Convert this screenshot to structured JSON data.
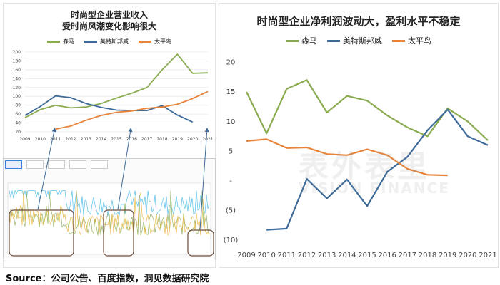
{
  "colors": {
    "senma": "#8aab4f",
    "metersbonwe": "#3d6a99",
    "taipingniao": "#e8833a"
  },
  "chart_data": [
    {
      "type": "line",
      "title": "时尚型企业营业收入\n受时尚风潮变化影响很大",
      "title_line1": "时尚型企业营业收入",
      "title_line2": "受时尚风潮变化影响很大",
      "x": [
        "2009",
        "2010",
        "2011",
        "2012",
        "2013",
        "2014",
        "2015",
        "2016",
        "2017",
        "2018",
        "2019",
        "2020",
        "2021"
      ],
      "y_ticks": [
        20,
        40,
        60,
        80,
        100,
        120,
        140,
        160,
        180,
        200
      ],
      "ylim": [
        20,
        200
      ],
      "series": [
        {
          "name": "森马",
          "values": [
            52,
            70,
            80,
            74,
            76,
            84,
            96,
            107,
            120,
            160,
            195,
            152,
            153
          ]
        },
        {
          "name": "美特斯邦威",
          "values": [
            57,
            77,
            101,
            97,
            84,
            75,
            69,
            68,
            68,
            79,
            58,
            42,
            null
          ]
        },
        {
          "name": "太平鸟",
          "values": [
            null,
            null,
            26,
            33,
            46,
            57,
            64,
            67,
            73,
            76,
            82,
            95,
            111
          ]
        }
      ],
      "legend": "top"
    },
    {
      "type": "line",
      "title": "时尚型企业净利润波动大，盈利水平不稳定",
      "x": [
        "2009",
        "2010",
        "2011",
        "2012",
        "2013",
        "2014",
        "2015",
        "2016",
        "2017",
        "2018",
        "2019",
        "2020",
        "2021"
      ],
      "y_ticks": [
        "20",
        "15",
        "10",
        "5",
        "-",
        "(5)",
        "(10)"
      ],
      "y_tick_values": [
        20,
        15,
        10,
        5,
        0,
        -5,
        -10
      ],
      "ylim": [
        -11,
        21
      ],
      "series": [
        {
          "name": "森马",
          "values": [
            15.0,
            8.0,
            15.5,
            17.0,
            11.5,
            14.3,
            13.5,
            11.0,
            9.0,
            7.5,
            12.2,
            10.0,
            6.8
          ]
        },
        {
          "name": "美特斯邦威",
          "values": [
            null,
            -8.3,
            -8.1,
            0.3,
            -3.0,
            0.2,
            -4.3,
            1.5,
            4.0,
            8.5,
            12.0,
            7.5,
            6.0
          ]
        },
        {
          "name": "太平鸟",
          "values": [
            6.7,
            7.0,
            5.5,
            5.6,
            4.5,
            4.3,
            5.3,
            4.3,
            2.0,
            1.0,
            0.9,
            null,
            null
          ]
        }
      ],
      "legend": "top"
    }
  ],
  "watermark": {
    "cn": "表外表里",
    "en": "VISION FINANCE"
  },
  "source_text": "Source：公司公告、百度指数，洞见数据研究院"
}
